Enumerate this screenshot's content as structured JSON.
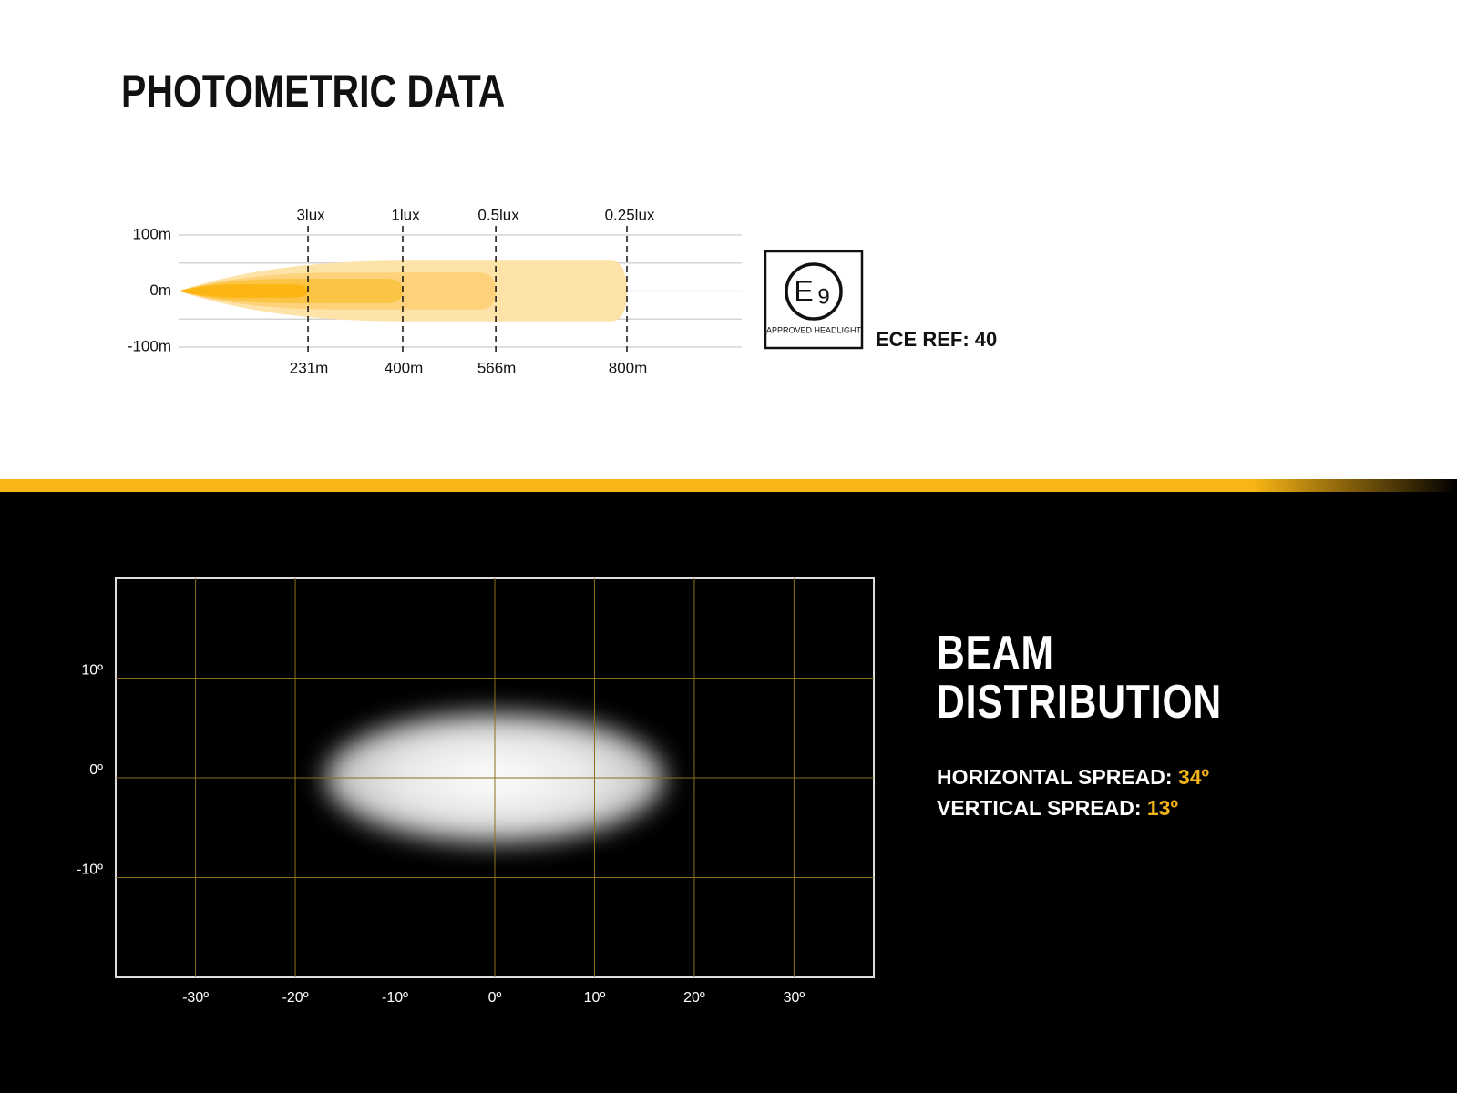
{
  "title": "PHOTOMETRIC DATA",
  "badge": {
    "letter": "E",
    "number": "9",
    "caption": "APPROVED HEADLIGHT"
  },
  "ece_ref": "ECE REF: 40",
  "chart_data": [
    {
      "type": "isolux",
      "categories": [
        "3lux",
        "1lux",
        "0.5lux",
        "0.25lux"
      ],
      "values": [
        231,
        400,
        566,
        800
      ],
      "value_labels": [
        "231m",
        "400m",
        "566m",
        "800m"
      ],
      "half_widths": [
        12,
        22,
        33,
        54
      ],
      "colors": [
        "#fbb614",
        "#fcc444",
        "#fdd27a",
        "#fee3a8"
      ],
      "xlim": [
        0,
        800
      ],
      "ylim": [
        -100,
        100
      ],
      "yticks": [
        {
          "value": 100,
          "label": "100m"
        },
        {
          "value": 0,
          "label": "0m"
        },
        {
          "value": -100,
          "label": "-100m"
        }
      ],
      "ygrid": [
        -100,
        -50,
        0,
        50,
        100
      ]
    },
    {
      "type": "beam",
      "title": "BEAM DISTRIBUTION",
      "xlim": [
        -38,
        38
      ],
      "ylim": [
        -20,
        20
      ],
      "xticks": [
        {
          "value": -30,
          "label": "-30º"
        },
        {
          "value": -20,
          "label": "-20º"
        },
        {
          "value": -10,
          "label": "-10º"
        },
        {
          "value": 0,
          "label": "0º"
        },
        {
          "value": 10,
          "label": "10º"
        },
        {
          "value": 20,
          "label": "20º"
        },
        {
          "value": 30,
          "label": "30º"
        }
      ],
      "yticks": [
        {
          "value": 10,
          "label": "10º"
        },
        {
          "value": 0,
          "label": "0º"
        },
        {
          "value": -10,
          "label": "-10º"
        }
      ],
      "horizontal_spread": {
        "label": "HORIZONTAL SPREAD:",
        "value": 34,
        "value_label": "34º"
      },
      "vertical_spread": {
        "label": "VERTICAL SPREAD:",
        "value": 13,
        "value_label": "13º"
      },
      "grid_color": "#8a6d1f"
    }
  ]
}
